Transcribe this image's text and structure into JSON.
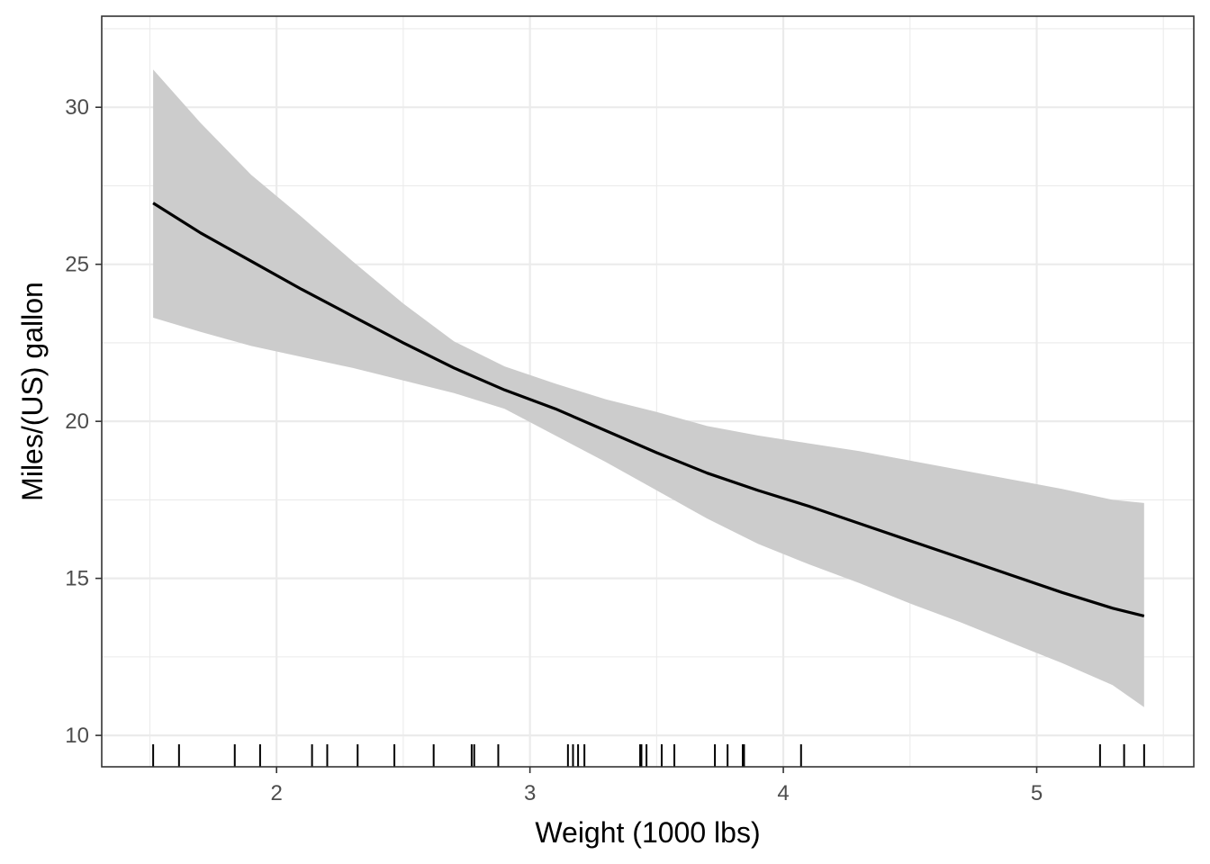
{
  "chart_data": {
    "type": "line",
    "xlabel": "Weight (1000 lbs)",
    "ylabel": "Miles/(US) gallon",
    "xlim": [
      1.31,
      5.62
    ],
    "ylim": [
      9.0,
      32.9
    ],
    "x_ticks": [
      2,
      3,
      4,
      5
    ],
    "y_ticks": [
      10,
      15,
      20,
      25,
      30
    ],
    "x_tick_labels": [
      "2",
      "3",
      "4",
      "5"
    ],
    "y_tick_labels": [
      "10",
      "15",
      "20",
      "25",
      "30"
    ],
    "grid": true,
    "series": [
      {
        "x": [
          1.513,
          1.7,
          1.9,
          2.1,
          2.3,
          2.5,
          2.7,
          2.9,
          3.1,
          3.3,
          3.5,
          3.7,
          3.9,
          4.1,
          4.3,
          4.5,
          4.7,
          4.9,
          5.1,
          5.3,
          5.424
        ],
        "y": [
          26.95,
          26.0,
          25.1,
          24.2,
          23.35,
          22.5,
          21.7,
          21.0,
          20.4,
          19.7,
          19.0,
          18.35,
          17.8,
          17.3,
          16.75,
          16.2,
          15.65,
          15.1,
          14.55,
          14.05,
          13.8
        ],
        "lower": [
          23.3,
          22.85,
          22.4,
          22.05,
          21.7,
          21.3,
          20.9,
          20.4,
          19.55,
          18.7,
          17.8,
          16.9,
          16.1,
          15.45,
          14.85,
          14.2,
          13.6,
          12.95,
          12.3,
          11.6,
          10.9
        ],
        "upper": [
          31.2,
          29.5,
          27.85,
          26.5,
          25.1,
          23.75,
          22.55,
          21.75,
          21.2,
          20.7,
          20.3,
          19.85,
          19.55,
          19.3,
          19.05,
          18.75,
          18.45,
          18.15,
          17.85,
          17.5,
          17.4
        ]
      }
    ],
    "rug_x": [
      1.513,
      1.615,
      1.835,
      1.935,
      2.14,
      2.2,
      2.32,
      2.465,
      2.62,
      2.77,
      2.78,
      2.875,
      3.15,
      3.17,
      3.19,
      3.215,
      3.435,
      3.44,
      3.46,
      3.52,
      3.57,
      3.73,
      3.78,
      3.84,
      3.845,
      4.07,
      5.25,
      5.345,
      5.424
    ],
    "colors": {
      "line": "#000000",
      "ribbon": "#cccccc",
      "grid": "#ebebeb",
      "panel_border": "#333333",
      "rug": "#000000"
    }
  }
}
